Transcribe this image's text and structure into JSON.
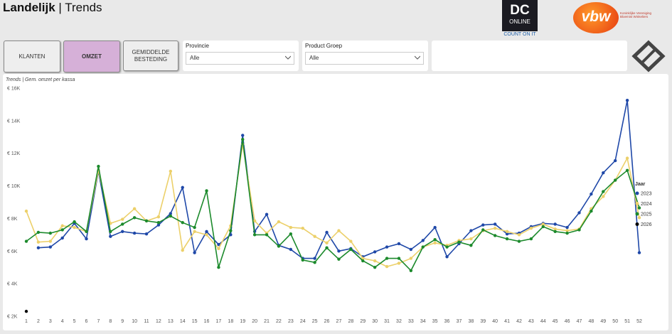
{
  "header": {
    "title_bold": "Landelijk",
    "title_rest": "| Trends",
    "dc_logo": {
      "line1": "DC",
      "line2": "ONLINE",
      "tagline": "COUNT ON IT"
    },
    "vbw_logo": {
      "text": "vbw",
      "subtitle": "Koninklijke Vereniging Bloemist Winkeliers"
    }
  },
  "buttons": [
    "KLANTEN",
    "OMZET",
    "GEMIDDELDE BESTEDING"
  ],
  "filters": [
    {
      "label": "Provincie",
      "value": "Alle"
    },
    {
      "label": "Product Groep",
      "value": "Alle"
    }
  ],
  "chart_data": {
    "type": "line",
    "title": "Trends | Gem. omzet per kassa",
    "legend_title": "Jaar",
    "legend": "right",
    "categories": [
      "1",
      "2",
      "3",
      "4",
      "5",
      "6",
      "7",
      "8",
      "9",
      "10",
      "11",
      "12",
      "13",
      "14",
      "15",
      "16",
      "17",
      "18",
      "19",
      "20",
      "21",
      "22",
      "23",
      "24",
      "25",
      "26",
      "27",
      "28",
      "29",
      "30",
      "31",
      "32",
      "33",
      "34",
      "35",
      "36",
      "37",
      "38",
      "39",
      "40",
      "41",
      "42",
      "43",
      "44",
      "45",
      "46",
      "47",
      "48",
      "49",
      "50",
      "51",
      "52"
    ],
    "ylim": [
      2000,
      16000
    ],
    "yticks": [
      {
        "value": 2000,
        "label": "€ 2K"
      },
      {
        "value": 4000,
        "label": "€ 4K"
      },
      {
        "value": 6000,
        "label": "€ 6K"
      },
      {
        "value": 8000,
        "label": "€ 8K"
      },
      {
        "value": 10000,
        "label": "€ 10K"
      },
      {
        "value": 12000,
        "label": "€ 12K"
      },
      {
        "value": 14000,
        "label": "€ 14K"
      },
      {
        "value": 16000,
        "label": "€ 16K"
      }
    ],
    "series": [
      {
        "name": "2023",
        "color": "#1f48a8",
        "values": [
          null,
          6200,
          6250,
          6800,
          7700,
          6750,
          10900,
          6900,
          7200,
          7100,
          7050,
          7600,
          8300,
          9900,
          5900,
          7200,
          6400,
          7000,
          13100,
          7200,
          8250,
          6350,
          6100,
          5550,
          5550,
          7150,
          6000,
          6150,
          5650,
          5950,
          6250,
          6450,
          6100,
          6650,
          7450,
          5650,
          6450,
          7250,
          7600,
          7650,
          7050,
          7100,
          7500,
          7700,
          7650,
          7450,
          8350,
          9500,
          10800,
          11550,
          15250,
          5900
        ]
      },
      {
        "name": "2024",
        "color": "#ecd06a",
        "values": [
          8450,
          6550,
          6600,
          7550,
          7450,
          7200,
          10950,
          7700,
          7950,
          8600,
          7850,
          8100,
          10900,
          6050,
          7200,
          7000,
          6150,
          7550,
          12550,
          7850,
          7100,
          7800,
          7450,
          7400,
          6900,
          6500,
          7250,
          6600,
          5550,
          5400,
          5050,
          5250,
          5550,
          6250,
          6500,
          6350,
          6650,
          6750,
          7250,
          7400,
          7200,
          7000,
          7400,
          7650,
          7350,
          7250,
          7350,
          8600,
          9350,
          10350,
          11700,
          8050
        ]
      },
      {
        "name": "2025",
        "color": "#1c8a2c",
        "values": [
          6600,
          7150,
          7100,
          7300,
          7800,
          7200,
          11200,
          7200,
          7650,
          8050,
          7850,
          7750,
          8150,
          7750,
          7450,
          9700,
          5000,
          7250,
          12850,
          7000,
          7000,
          6300,
          7050,
          5450,
          5300,
          6200,
          5500,
          6100,
          5400,
          5000,
          5550,
          5550,
          4800,
          6250,
          6700,
          6250,
          6550,
          6350,
          7300,
          6950,
          6750,
          6600,
          6750,
          7500,
          7200,
          7100,
          7300,
          8450,
          9650,
          10350,
          10950,
          8650
        ]
      },
      {
        "name": "2026",
        "color": "#000000",
        "values": [
          2300,
          null,
          null,
          null,
          null,
          null,
          null,
          null,
          null,
          null,
          null,
          null,
          null,
          null,
          null,
          null,
          null,
          null,
          null,
          null,
          null,
          null,
          null,
          null,
          null,
          null,
          null,
          null,
          null,
          null,
          null,
          null,
          null,
          null,
          null,
          null,
          null,
          null,
          null,
          null,
          null,
          null,
          null,
          null,
          null,
          null,
          null,
          null,
          null,
          null,
          null,
          null
        ]
      }
    ]
  }
}
